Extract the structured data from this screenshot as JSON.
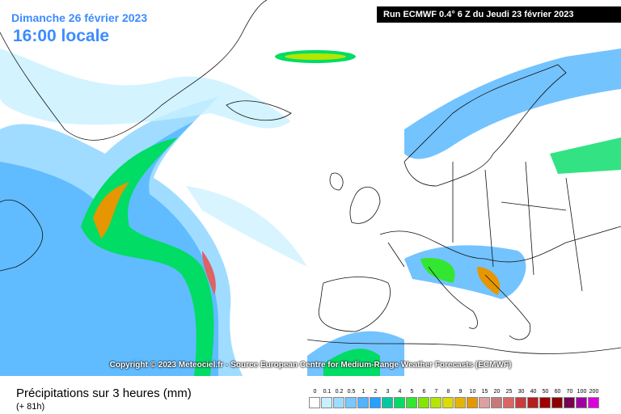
{
  "header": {
    "date": "Dimanche 26 février 2023",
    "time": "16:00 locale",
    "run": "Run ECMWF 0.4° 6 Z du Jeudi 23 février 2023"
  },
  "copyright": "Copyright © 2023 Meteociel.fr - Source European Centre for Medium-Range Weather Forecasts (ECMWF)",
  "footer": {
    "title": "Précipitations sur 3 heures (mm)",
    "lead": "(+ 81h)"
  },
  "legend": {
    "labels": [
      "0",
      "0.1",
      "0.2",
      "0.5",
      "1",
      "2",
      "3",
      "4",
      "5",
      "6",
      "7",
      "8",
      "9",
      "10",
      "15",
      "20",
      "25",
      "30",
      "40",
      "50",
      "60",
      "70",
      "100",
      "200"
    ],
    "colors": [
      "#ffffff",
      "#c8f0ff",
      "#a0dcff",
      "#78c8ff",
      "#50b4ff",
      "#28a0ff",
      "#00c8a0",
      "#00dc64",
      "#32e632",
      "#82e600",
      "#b4e600",
      "#dcdc00",
      "#e6b400",
      "#e69600",
      "#dca0a0",
      "#c87878",
      "#dc6464",
      "#c83c3c",
      "#b41e1e",
      "#a00000",
      "#8c0000",
      "#780050",
      "#a000a0",
      "#dc00dc"
    ]
  }
}
